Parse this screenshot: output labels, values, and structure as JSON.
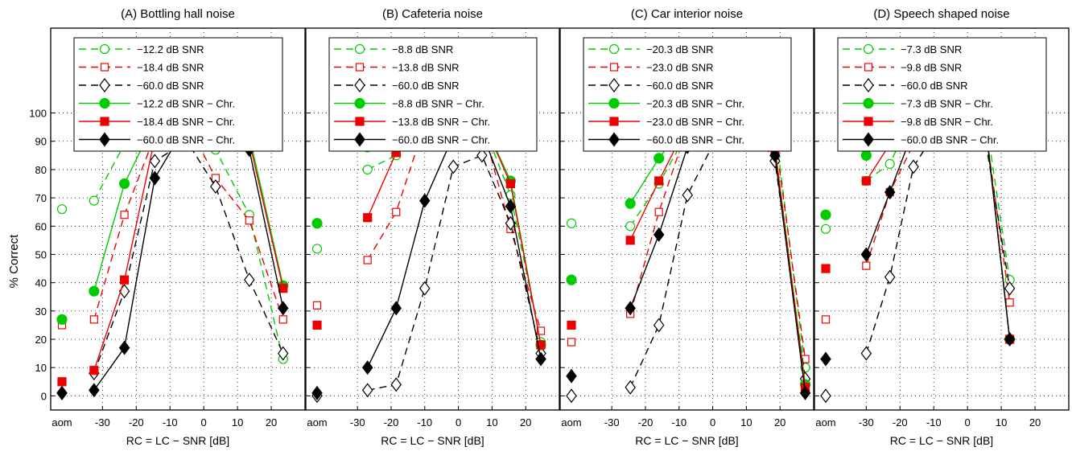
{
  "shared": {
    "ylabel": "% Correct",
    "xlabel": "RC = LC − SNR [dB]",
    "aom_label": "aom",
    "yticks": [
      0,
      10,
      20,
      30,
      40,
      50,
      60,
      70,
      80,
      90,
      100
    ],
    "ylim": [
      -5,
      130
    ],
    "grid": true,
    "legend_position": "top",
    "colors": {
      "green": "#00cc00",
      "red": "#ee0000",
      "black": "#000000"
    }
  },
  "chart_data": [
    {
      "type": "line",
      "title": "(A) Bottling hall noise",
      "xlim": [
        -42,
        30
      ],
      "xticks": [
        -30,
        -20,
        -10,
        0,
        10,
        20
      ],
      "series": [
        {
          "name": "−12.2 dB SNR",
          "color": "green",
          "style": "dashed",
          "marker": "circle",
          "filled": false,
          "aom": 66,
          "x": [
            -32.5,
            -23.5
          ],
          "y": [
            69,
            89
          ],
          "x2": [
            -14.5,
            -5,
            3.5,
            13.5,
            23.5
          ],
          "y2": [
            94,
            97,
            87,
            64,
            13
          ]
        },
        {
          "name": "−18.4 dB SNR",
          "color": "red",
          "style": "dashed",
          "marker": "square",
          "filled": false,
          "aom": 25,
          "x": [
            -32.5,
            -23.5,
            -14.5,
            -5,
            3.5,
            13.5,
            23.5
          ],
          "y": [
            27,
            64,
            92,
            97,
            77,
            62,
            27
          ]
        },
        {
          "name": "−60.0 dB SNR",
          "color": "black",
          "style": "dashed",
          "marker": "diamond",
          "filled": false,
          "aom": 1,
          "x": [
            -32.5,
            -23.5,
            -14.5,
            -5,
            3.5,
            13.5,
            23.5
          ],
          "y": [
            8,
            37,
            83,
            90,
            74,
            41,
            15
          ]
        },
        {
          "name": "−12.2 dB SNR − Chr.",
          "color": "green",
          "style": "solid",
          "marker": "circle",
          "filled": true,
          "aom": 27,
          "x": [
            -32.5,
            -23.5,
            -14.5,
            -5,
            3.5,
            13.5,
            23.5
          ],
          "y": [
            37,
            75,
            97,
            99,
            99,
            92,
            39
          ]
        },
        {
          "name": "−18.4 dB SNR − Chr.",
          "color": "red",
          "style": "solid",
          "marker": "square",
          "filled": true,
          "aom": 5,
          "x": [
            -32.5,
            -23.5,
            -14.5,
            -5,
            3.5,
            13.5,
            23.5
          ],
          "y": [
            9,
            41,
            91,
            98,
            98,
            90,
            38
          ]
        },
        {
          "name": "−60.0 dB SNR − Chr.",
          "color": "black",
          "style": "solid",
          "marker": "diamond",
          "filled": true,
          "aom": 1,
          "x": [
            -32.5,
            -23.5,
            -14.5,
            -5,
            3.5,
            13.5,
            23.5
          ],
          "y": [
            2,
            17,
            77,
            96,
            96,
            87,
            31
          ]
        }
      ]
    },
    {
      "type": "line",
      "title": "(B) Cafeteria noise",
      "xlim": [
        -42,
        30
      ],
      "xticks": [
        -30,
        -20,
        -10,
        0,
        10,
        20
      ],
      "series": [
        {
          "name": "−8.8 dB SNR",
          "color": "green",
          "style": "dashed",
          "marker": "circle",
          "filled": false,
          "aom": 52,
          "x": [
            -27,
            -18.5
          ],
          "y2": [],
          "x2": [],
          "y": [
            80,
            85
          ],
          "xb": [
            -10,
            -1.5,
            7,
            15.5,
            24.5
          ],
          "yb": [
            98,
            99,
            97,
            71,
            19
          ]
        },
        {
          "name": "−13.8 dB SNR",
          "color": "red",
          "style": "dashed",
          "marker": "square",
          "filled": false,
          "aom": 32,
          "x": [
            -27,
            -18.5,
            -10,
            -1.5,
            7,
            15.5,
            24.5
          ],
          "y": [
            48,
            65,
            96,
            99,
            96,
            59,
            23
          ]
        },
        {
          "name": "−60.0 dB SNR",
          "color": "black",
          "style": "dashed",
          "marker": "diamond",
          "filled": false,
          "aom": 0,
          "x": [
            -27,
            -18.5,
            -10,
            -1.5,
            7,
            15.5,
            24.5
          ],
          "y": [
            2,
            4,
            38,
            81,
            85,
            61,
            15
          ]
        },
        {
          "name": "−8.8 dB SNR − Chr.",
          "color": "green",
          "style": "solid",
          "marker": "circle",
          "filled": true,
          "aom": 61,
          "x": [
            -27,
            -18.5,
            -10,
            -1.5,
            7,
            15.5,
            24.5
          ],
          "y": [
            88,
            97,
            100,
            100,
            98,
            76,
            18
          ]
        },
        {
          "name": "−13.8 dB SNR − Chr.",
          "color": "red",
          "style": "solid",
          "marker": "square",
          "filled": true,
          "aom": 25,
          "x": [
            -27,
            -18.5,
            -10,
            -1.5,
            7,
            15.5,
            24.5
          ],
          "y": [
            63,
            86,
            99,
            100,
            98,
            75,
            18
          ]
        },
        {
          "name": "−60.0 dB SNR − Chr.",
          "color": "black",
          "style": "solid",
          "marker": "diamond",
          "filled": true,
          "aom": 1,
          "x": [
            -27,
            -18.5,
            -10,
            -1.5,
            7,
            15.5,
            24.5
          ],
          "y": [
            10,
            31,
            69,
            92,
            93,
            67,
            13
          ]
        }
      ]
    },
    {
      "type": "line",
      "title": "(C) Car interior noise",
      "xlim": [
        -42,
        30
      ],
      "xticks": [
        -30,
        -20,
        -10,
        0,
        10,
        20
      ],
      "series": [
        {
          "name": "−20.3 dB SNR",
          "color": "green",
          "style": "dashed",
          "marker": "circle",
          "filled": false,
          "aom": 61,
          "x": [
            -24.5,
            -16,
            -7.5,
            1,
            9.5,
            18.5,
            27.5
          ],
          "y": [
            60,
            75,
            93,
            98,
            99,
            95,
            10
          ]
        },
        {
          "name": "−23.0 dB SNR",
          "color": "red",
          "style": "dashed",
          "marker": "square",
          "filled": false,
          "aom": 19,
          "x": [
            -24.5,
            -16,
            -7.5,
            1,
            9.5,
            18.5,
            27.5
          ],
          "y": [
            29,
            65,
            95,
            99,
            100,
            92,
            13
          ]
        },
        {
          "name": "−60.0 dB SNR",
          "color": "black",
          "style": "dashed",
          "marker": "diamond",
          "filled": false,
          "aom": 0,
          "x": [
            -24.5,
            -16,
            -7.5,
            1,
            9.5,
            18.5,
            27.5
          ],
          "y": [
            3,
            25,
            71,
            91,
            99,
            83,
            6
          ]
        },
        {
          "name": "−20.3 dB SNR − Chr.",
          "color": "green",
          "style": "solid",
          "marker": "circle",
          "filled": true,
          "aom": 41,
          "x": [
            -24.5,
            -16,
            -7.5,
            1,
            9.5,
            18.5,
            27.5
          ],
          "y": [
            68,
            84,
            97,
            99,
            100,
            88,
            4
          ]
        },
        {
          "name": "−23.0 dB SNR − Chr.",
          "color": "red",
          "style": "solid",
          "marker": "square",
          "filled": true,
          "aom": 25,
          "x": [
            -24.5,
            -16,
            -7.5,
            1,
            9.5,
            18.5,
            27.5
          ],
          "y": [
            55,
            76,
            96,
            99,
            100,
            87,
            3
          ]
        },
        {
          "name": "−60.0 dB SNR − Chr.",
          "color": "black",
          "style": "solid",
          "marker": "diamond",
          "filled": true,
          "aom": 7,
          "x": [
            -24.5,
            -16,
            -7.5,
            1,
            9.5,
            18.5,
            27.5
          ],
          "y": [
            31,
            57,
            88,
            99,
            100,
            85,
            1
          ]
        }
      ]
    },
    {
      "type": "line",
      "title": "(D) Speech shaped noise",
      "xlim": [
        -42,
        30
      ],
      "xticks": [
        -30,
        -20,
        -10,
        0,
        10,
        20
      ],
      "series": [
        {
          "name": "−7.3 dB SNR",
          "color": "green",
          "style": "dashed",
          "marker": "circle",
          "filled": false,
          "aom": 59,
          "x": [
            -30,
            -23,
            -16,
            -8.5,
            -1.5,
            5.5,
            12.5
          ],
          "y": [
            76,
            82,
            100,
            100,
            100,
            97,
            41
          ]
        },
        {
          "name": "−9.8 dB SNR",
          "color": "red",
          "style": "dashed",
          "marker": "square",
          "filled": false,
          "aom": 27,
          "x": [
            -30,
            -23,
            -16,
            -8.5,
            -1.5,
            5.5,
            12.5
          ],
          "y": [
            46,
            72,
            89,
            99,
            100,
            93,
            33
          ]
        },
        {
          "name": "−60.0 dB SNR",
          "color": "black",
          "style": "dashed",
          "marker": "diamond",
          "filled": false,
          "aom": 0,
          "x": [
            -30,
            -23,
            -16,
            -8.5,
            -1.5,
            5.5,
            12.5
          ],
          "y": [
            15,
            42,
            81,
            95,
            99,
            89,
            38
          ]
        },
        {
          "name": "−7.3 dB SNR − Chr.",
          "color": "green",
          "style": "solid",
          "marker": "circle",
          "filled": true,
          "aom": 64,
          "x": [
            -30,
            -23,
            -16,
            -8.5,
            -1.5,
            5.5,
            12.5
          ],
          "y": [
            85,
            94,
            98,
            100,
            100,
            95,
            20
          ]
        },
        {
          "name": "−9.8 dB SNR − Chr.",
          "color": "red",
          "style": "solid",
          "marker": "square",
          "filled": true,
          "aom": 45,
          "x": [
            -30,
            -23,
            -16,
            -8.5,
            -1.5,
            5.5,
            12.5
          ],
          "y": [
            76,
            89,
            98,
            100,
            100,
            94,
            20
          ]
        },
        {
          "name": "−60.0 dB SNR − Chr.",
          "color": "black",
          "style": "solid",
          "marker": "diamond",
          "filled": true,
          "aom": 13,
          "x": [
            -30,
            -23,
            -16,
            -8.5,
            -1.5,
            5.5,
            12.5
          ],
          "y": [
            50,
            72,
            94,
            100,
            100,
            94,
            20
          ]
        }
      ]
    }
  ]
}
